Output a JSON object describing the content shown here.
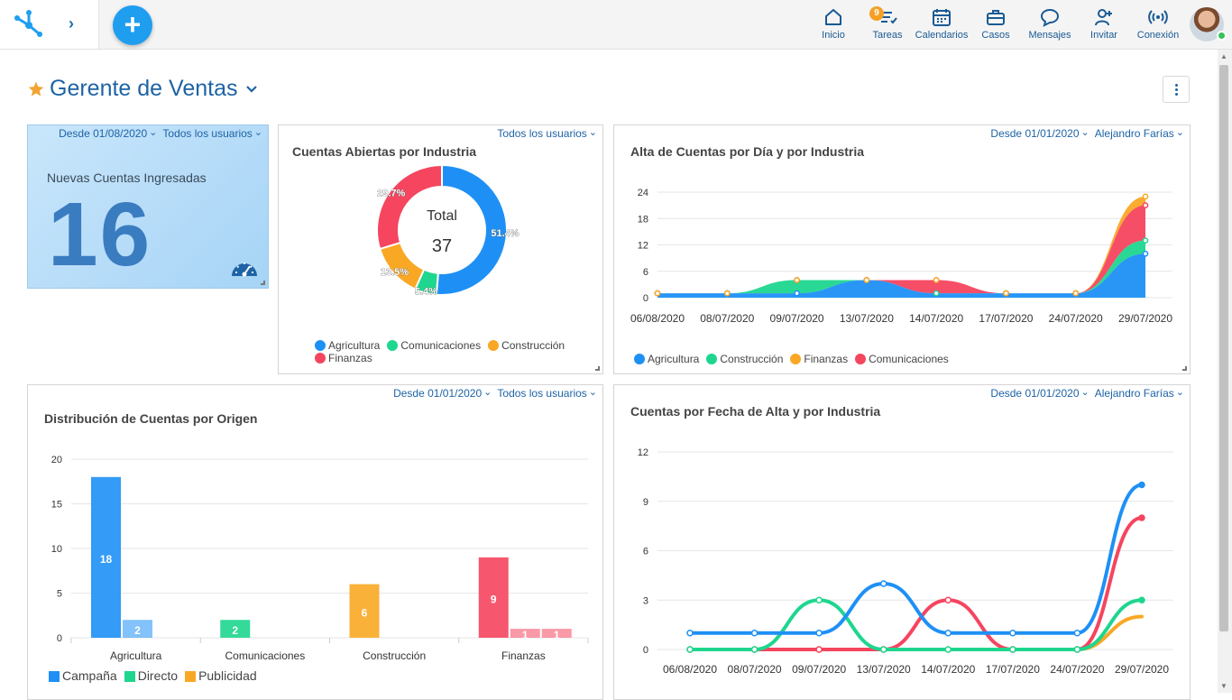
{
  "topbar": {
    "nav": [
      {
        "id": "inicio",
        "label": "Inicio",
        "icon": "home-icon"
      },
      {
        "id": "tareas",
        "label": "Tareas",
        "icon": "tasks-icon"
      },
      {
        "id": "calendarios",
        "label": "Calendarios",
        "icon": "calendar-icon"
      },
      {
        "id": "casos",
        "label": "Casos",
        "icon": "briefcase-icon"
      },
      {
        "id": "mensajes",
        "label": "Mensajes",
        "icon": "chat-icon"
      },
      {
        "id": "invitar",
        "label": "Invitar",
        "icon": "add-user-icon"
      },
      {
        "id": "conexion",
        "label": "Conexión",
        "icon": "broadcast-icon"
      }
    ],
    "tasks_badge": "9",
    "add_label": "+",
    "accent": "#1f9ef0"
  },
  "page": {
    "title": "Gerente de Ventas"
  },
  "colors": {
    "agricultura": "#1e90f5",
    "comunicaciones": "#1ed68e",
    "construccion": "#f9a825",
    "finanzas": "#f5455f",
    "star": "#f2a531",
    "title": "#1e63a5"
  },
  "widgets": {
    "kpi": {
      "filter_date": "Desde 01/08/2020",
      "filter_users": "Todos los usuarios",
      "label": "Nuevas Cuentas Ingresadas",
      "value": "16"
    },
    "donut": {
      "filter_users": "Todos los usuarios",
      "title": "Cuentas Abiertas por Industria",
      "center_label": "Total",
      "center_value": "37",
      "legend": [
        "Agricultura",
        "Comunicaciones",
        "Construcción",
        "Finanzas"
      ]
    },
    "area": {
      "filter_date": "Desde 01/01/2020",
      "filter_user": "Alejandro Farías",
      "title": "Alta de Cuentas por Día y por Industria",
      "legend": [
        "Agricultura",
        "Construcción",
        "Finanzas",
        "Comunicaciones"
      ]
    },
    "bar": {
      "filter_date": "Desde 01/01/2020",
      "filter_users": "Todos los usuarios",
      "title": "Distribución de Cuentas por Origen",
      "legend": [
        "Campaña",
        "Directo",
        "Publicidad"
      ]
    },
    "line": {
      "filter_date": "Desde 01/01/2020",
      "filter_user": "Alejandro Farías",
      "title": "Cuentas por Fecha de Alta y por Industria"
    }
  },
  "chart_data": [
    {
      "type": "pie",
      "title": "Cuentas Abiertas por Industria",
      "categories": [
        "Agricultura",
        "Comunicaciones",
        "Construcción",
        "Finanzas"
      ],
      "values": [
        19,
        2,
        5,
        11
      ],
      "labels": [
        "51.4%",
        "5.4%",
        "13.5%",
        "29.7%"
      ],
      "total": 37,
      "donut": true
    },
    {
      "type": "area",
      "title": "Alta de Cuentas por Día y por Industria",
      "x": [
        "06/08/2020",
        "08/07/2020",
        "09/07/2020",
        "13/07/2020",
        "14/07/2020",
        "17/07/2020",
        "24/07/2020",
        "29/07/2020"
      ],
      "stacked": true,
      "series": [
        {
          "name": "Agricultura",
          "values": [
            1,
            1,
            1,
            4,
            1,
            1,
            1,
            10
          ]
        },
        {
          "name": "Comunicaciones",
          "values": [
            0,
            0,
            3,
            0,
            0,
            0,
            0,
            3
          ]
        },
        {
          "name": "Finanzas",
          "values": [
            0,
            0,
            0,
            0,
            3,
            0,
            0,
            8
          ]
        },
        {
          "name": "Construcción",
          "values": [
            0,
            0,
            0,
            0,
            0,
            0,
            0,
            2
          ]
        }
      ],
      "yticks": [
        0,
        6,
        12,
        18,
        24
      ],
      "ylim": [
        0,
        24
      ],
      "legend_position": "bottom"
    },
    {
      "type": "bar",
      "title": "Distribución de Cuentas por Origen",
      "categories": [
        "Agricultura",
        "Comunicaciones",
        "Construcción",
        "Finanzas"
      ],
      "series": [
        {
          "name": "Campaña",
          "values": [
            18,
            0,
            0,
            9
          ]
        },
        {
          "name": "Directo",
          "values": [
            2,
            2,
            0,
            1
          ]
        },
        {
          "name": "Publicidad",
          "values": [
            0,
            0,
            6,
            1
          ]
        }
      ],
      "bar_colors": [
        [
          "#1e90f5",
          "#1e90f5"
        ],
        [
          "#1ed68e",
          "#1ed68e"
        ],
        [
          "#f9a825",
          "#f9a825"
        ],
        [
          "#f5455f",
          "#f5455f",
          "#f5455f"
        ]
      ],
      "yticks": [
        0,
        5,
        10,
        15,
        20
      ],
      "ylim": [
        0,
        20
      ],
      "legend_position": "bottom"
    },
    {
      "type": "line",
      "title": "Cuentas por Fecha de Alta y por Industria",
      "x": [
        "06/08/2020",
        "08/07/2020",
        "09/07/2020",
        "13/07/2020",
        "14/07/2020",
        "17/07/2020",
        "24/07/2020",
        "29/07/2020"
      ],
      "series": [
        {
          "name": "Agricultura",
          "values": [
            1,
            1,
            1,
            4,
            1,
            1,
            1,
            10
          ]
        },
        {
          "name": "Comunicaciones",
          "values": [
            0,
            0,
            3,
            0,
            0,
            0,
            0,
            3
          ]
        },
        {
          "name": "Finanzas",
          "values": [
            0,
            0,
            0,
            0,
            3,
            0,
            0,
            8
          ]
        },
        {
          "name": "Construcción",
          "values": [
            0,
            0,
            0,
            0,
            0,
            0,
            0,
            2
          ]
        }
      ],
      "yticks": [
        0,
        3,
        6,
        9,
        12
      ],
      "ylim": [
        0,
        12
      ]
    }
  ]
}
